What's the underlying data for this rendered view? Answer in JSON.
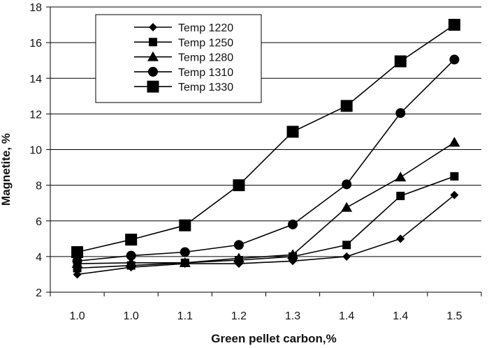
{
  "chart_data": {
    "type": "line",
    "title": "",
    "xlabel": "Green pellet carbon,%",
    "ylabel": "Magnetite, %",
    "categories": [
      "1.0",
      "1.0",
      "1.1",
      "1.2",
      "1.3",
      "1.4",
      "1.4",
      "1.5"
    ],
    "ylim": [
      2,
      18
    ],
    "yticks": [
      "2",
      "4",
      "6",
      "8",
      "10",
      "12",
      "14",
      "16",
      "18"
    ],
    "grid": "horizontal",
    "legend_position": "top-left",
    "series": [
      {
        "name": "Temp 1220",
        "marker": "diamond",
        "values": [
          3.0,
          3.4,
          3.6,
          3.6,
          3.75,
          4.0,
          5.0,
          7.45
        ]
      },
      {
        "name": "Temp 1250",
        "marker": "square-small",
        "values": [
          3.35,
          3.5,
          3.65,
          3.8,
          4.0,
          4.65,
          7.4,
          8.5
        ]
      },
      {
        "name": "Temp 1280",
        "marker": "triangle",
        "values": [
          3.6,
          3.65,
          3.65,
          3.9,
          4.1,
          6.75,
          8.45,
          10.4
        ]
      },
      {
        "name": "Temp 1310",
        "marker": "circle",
        "values": [
          3.75,
          4.05,
          4.25,
          4.65,
          5.8,
          8.05,
          12.05,
          15.05
        ]
      },
      {
        "name": "Temp 1330",
        "marker": "square-large",
        "values": [
          4.25,
          4.95,
          5.75,
          8.0,
          11.0,
          12.45,
          14.95,
          17.0
        ]
      }
    ],
    "colors": {
      "line": "#000000",
      "marker": "#000000",
      "grid": "#000000",
      "axis": "#000000"
    }
  }
}
